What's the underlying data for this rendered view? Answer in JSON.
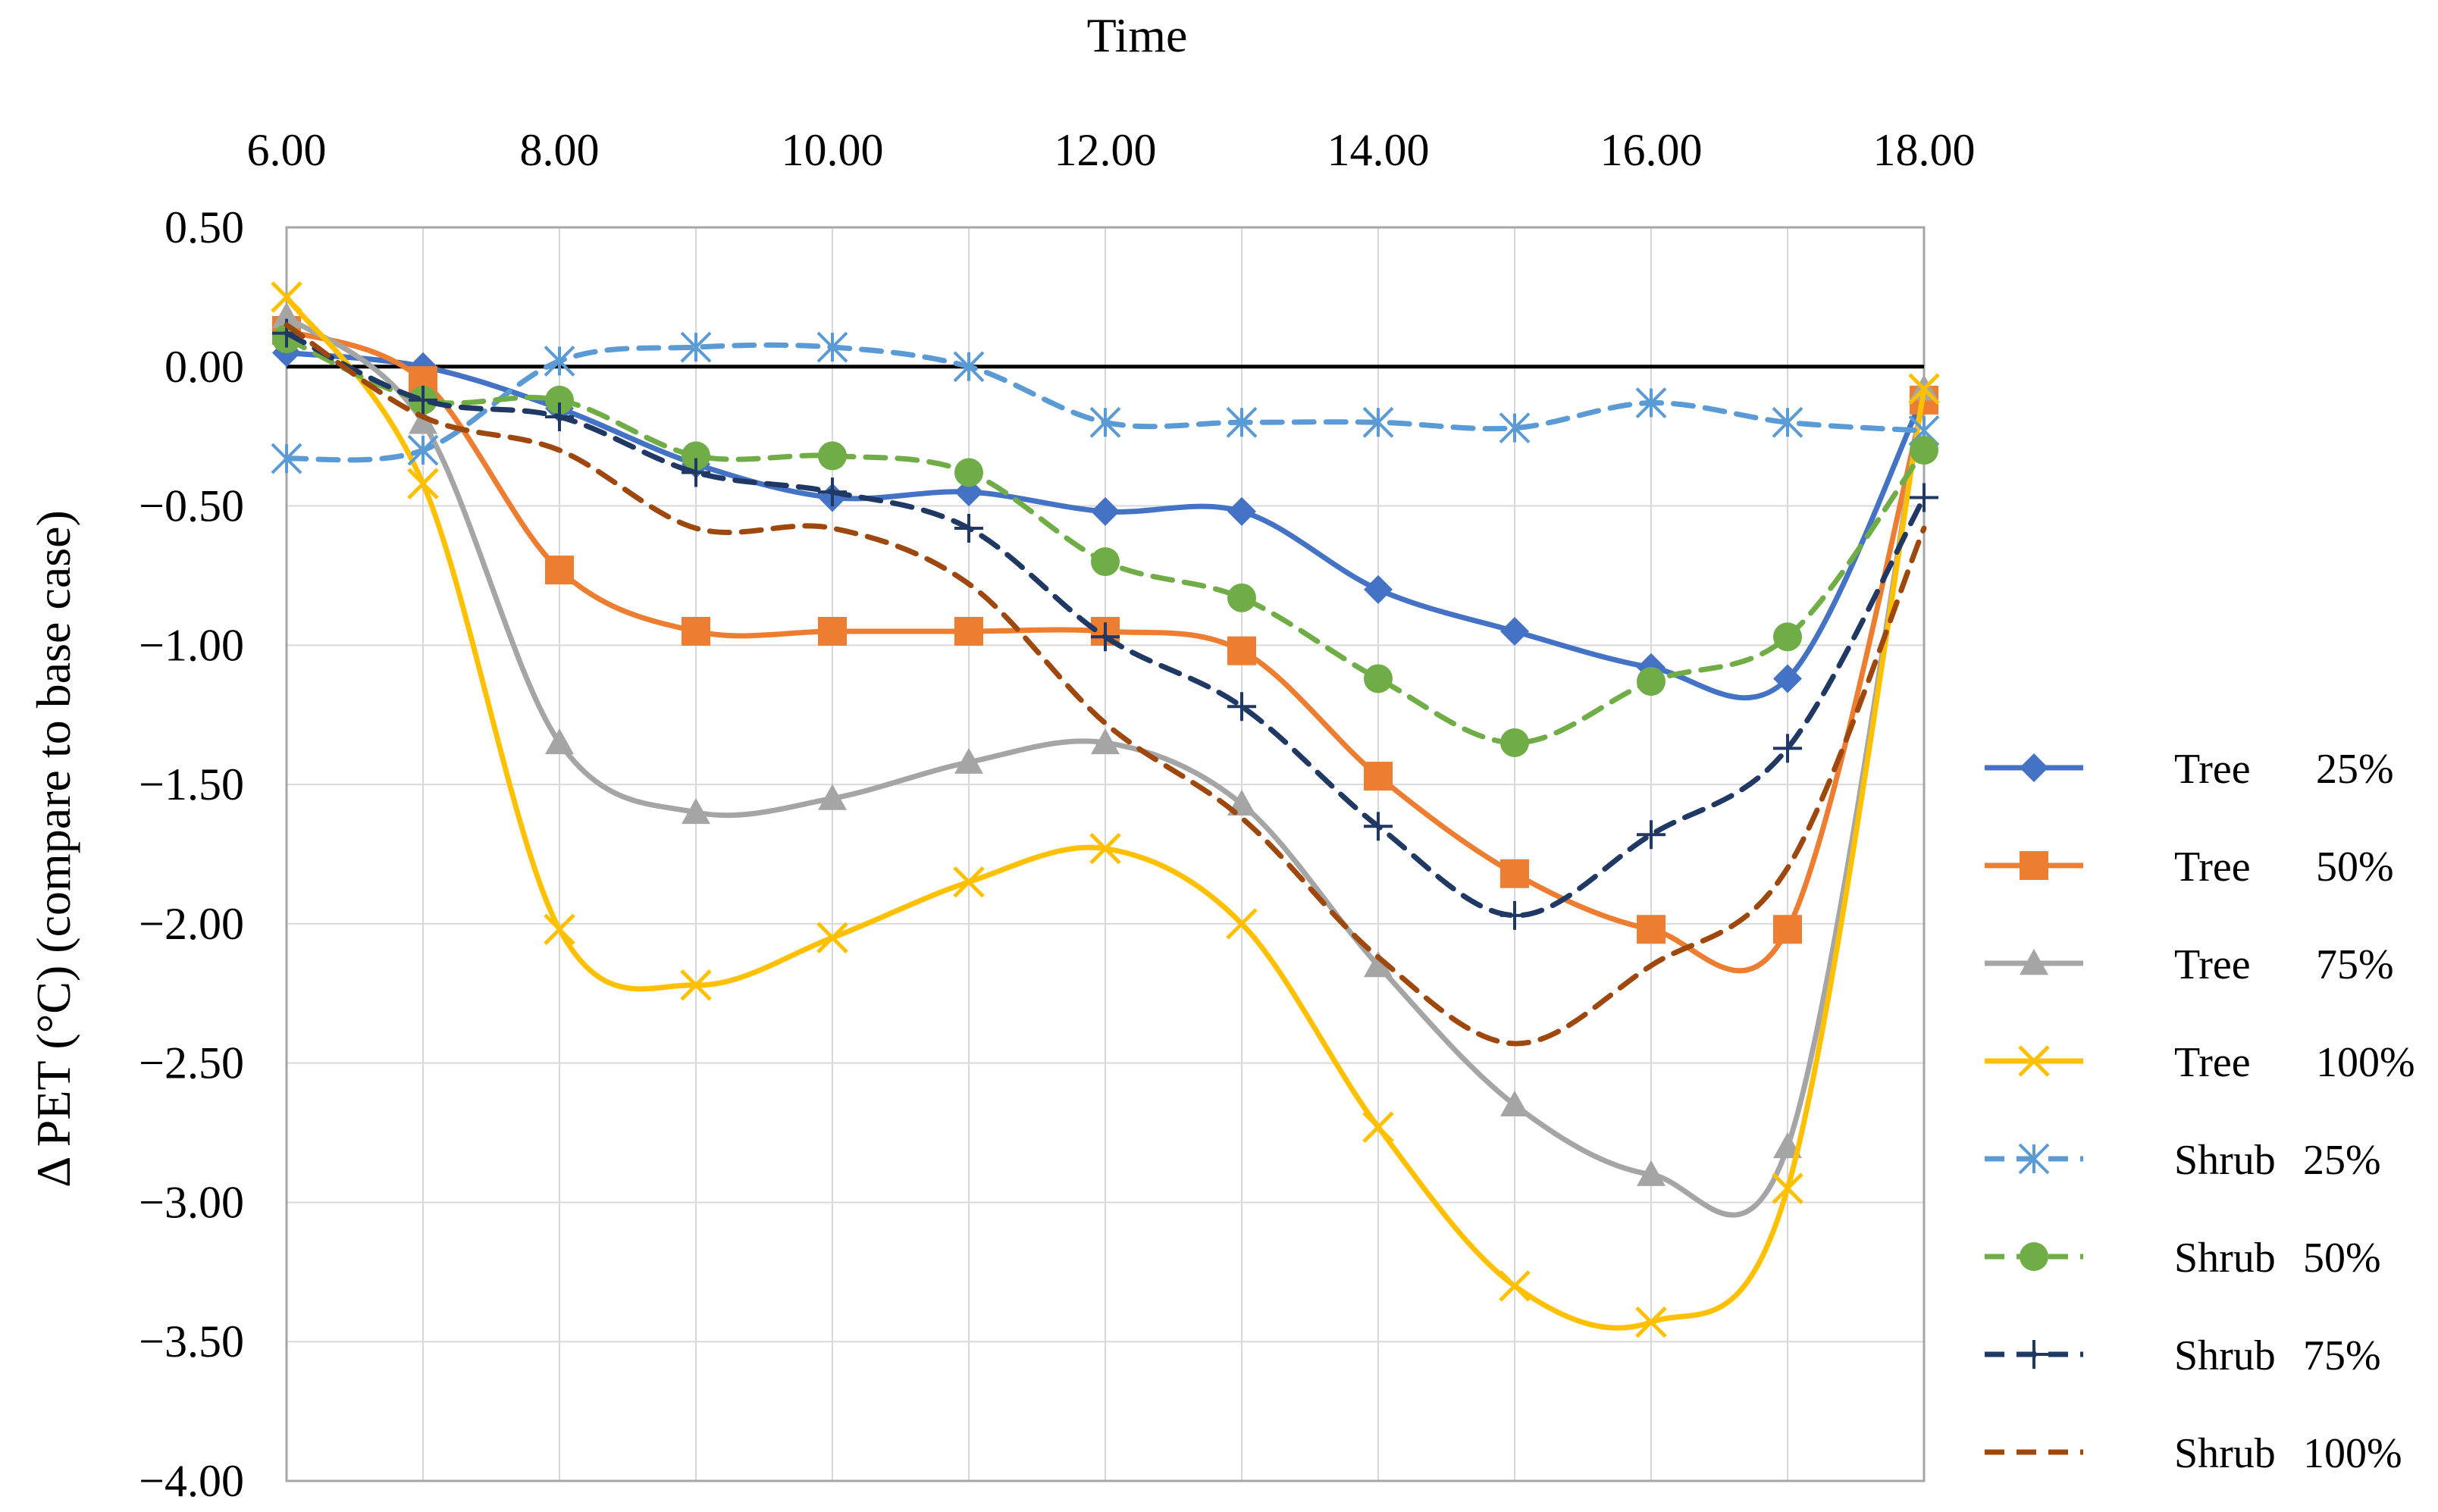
{
  "chart_data": {
    "type": "line",
    "title": "",
    "xlabel": "Time",
    "ylabel": "Δ PET (°C) (compare to base case)",
    "x_axis_position": "top",
    "x": [
      6,
      7,
      8,
      9,
      10,
      11,
      12,
      13,
      14,
      15,
      16,
      17,
      18
    ],
    "xlim": [
      6,
      18
    ],
    "ylim": [
      -4.0,
      0.5
    ],
    "x_ticks": [
      6,
      8,
      10,
      12,
      14,
      16,
      18
    ],
    "x_tick_labels": [
      "6.00",
      "8.00",
      "10.00",
      "12.00",
      "14.00",
      "16.00",
      "18.00"
    ],
    "y_ticks": [
      0.5,
      0.0,
      -0.5,
      -1.0,
      -1.5,
      -2.0,
      -2.5,
      -3.0,
      -3.5,
      -4.0
    ],
    "y_tick_labels": [
      "0.50",
      "0.00",
      "−0.50",
      "−1.00",
      "−1.50",
      "−2.00",
      "−2.50",
      "−3.00",
      "−3.50",
      "−4.00"
    ],
    "grid": true,
    "legend_position": "right",
    "series": [
      {
        "name": "Tree",
        "pct": "25%",
        "color": "#4472c4",
        "dashed": false,
        "marker": "diamond",
        "values": [
          0.05,
          0.0,
          -0.15,
          -0.35,
          -0.47,
          -0.45,
          -0.52,
          -0.52,
          -0.8,
          -0.95,
          -1.08,
          -1.12,
          -0.1
        ]
      },
      {
        "name": "Tree",
        "pct": "50%",
        "color": "#ed7d31",
        "dashed": false,
        "marker": "square",
        "values": [
          0.13,
          -0.05,
          -0.73,
          -0.95,
          -0.95,
          -0.95,
          -0.95,
          -1.02,
          -1.47,
          -1.82,
          -2.02,
          -2.02,
          -0.12
        ]
      },
      {
        "name": "Tree",
        "pct": "75%",
        "color": "#a5a5a5",
        "dashed": false,
        "marker": "triangle",
        "values": [
          0.18,
          -0.2,
          -1.35,
          -1.6,
          -1.55,
          -1.42,
          -1.35,
          -1.57,
          -2.15,
          -2.65,
          -2.9,
          -2.8,
          -0.08
        ]
      },
      {
        "name": "Tree",
        "pct": "100%",
        "color": "#ffc000",
        "dashed": false,
        "marker": "x",
        "values": [
          0.25,
          -0.42,
          -2.02,
          -2.22,
          -2.05,
          -1.85,
          -1.73,
          -2.0,
          -2.73,
          -3.3,
          -3.43,
          -2.95,
          -0.08
        ]
      },
      {
        "name": "Shrub",
        "pct": "25%",
        "color": "#5b9bd5",
        "dashed": true,
        "marker": "asterisk",
        "values": [
          -0.33,
          -0.3,
          0.02,
          0.07,
          0.07,
          0.0,
          -0.2,
          -0.2,
          -0.2,
          -0.22,
          -0.13,
          -0.2,
          -0.23
        ]
      },
      {
        "name": "Shrub",
        "pct": "50%",
        "color": "#70ad47",
        "dashed": true,
        "marker": "circle",
        "values": [
          0.1,
          -0.12,
          -0.12,
          -0.32,
          -0.32,
          -0.38,
          -0.7,
          -0.83,
          -1.12,
          -1.35,
          -1.13,
          -0.97,
          -0.3
        ]
      },
      {
        "name": "Shrub",
        "pct": "75%",
        "color": "#203864",
        "dashed": true,
        "marker": "plus",
        "values": [
          0.12,
          -0.12,
          -0.18,
          -0.38,
          -0.45,
          -0.58,
          -0.97,
          -1.22,
          -1.65,
          -1.97,
          -1.68,
          -1.37,
          -0.47
        ]
      },
      {
        "name": "Shrub",
        "pct": "100%",
        "color": "#9e480e",
        "dashed": true,
        "marker": "none",
        "values": [
          0.15,
          -0.18,
          -0.3,
          -0.58,
          -0.58,
          -0.78,
          -1.28,
          -1.62,
          -2.12,
          -2.43,
          -2.15,
          -1.8,
          -0.58
        ]
      }
    ]
  }
}
